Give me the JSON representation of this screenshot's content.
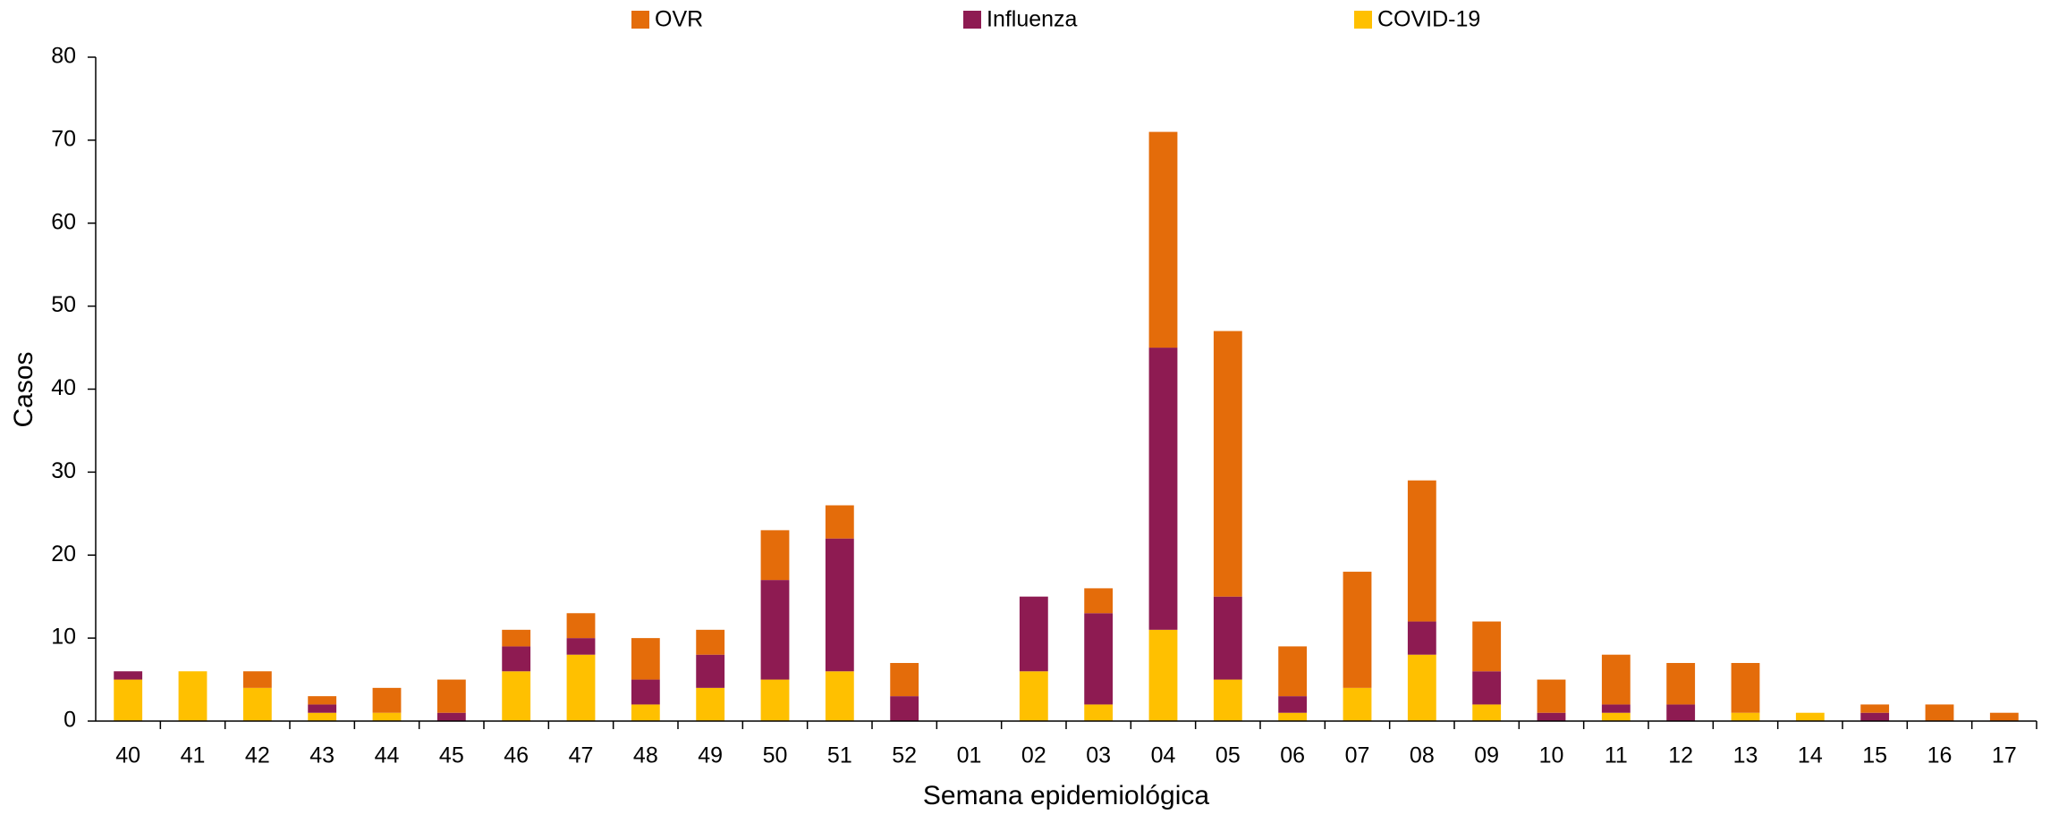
{
  "chart_data": {
    "type": "stacked_bar",
    "x_label": "Semana epidemiológica",
    "y_label": "Casos",
    "categories": [
      "40",
      "41",
      "42",
      "43",
      "44",
      "45",
      "46",
      "47",
      "48",
      "49",
      "50",
      "51",
      "52",
      "01",
      "02",
      "03",
      "04",
      "05",
      "06",
      "07",
      "08",
      "09",
      "10",
      "11",
      "12",
      "13",
      "14",
      "15",
      "16",
      "17"
    ],
    "series": [
      {
        "name": "OVR",
        "color": "#e46c0a",
        "values": [
          0,
          0,
          2,
          1,
          3,
          4,
          2,
          3,
          5,
          3,
          6,
          4,
          4,
          0,
          0,
          3,
          26,
          32,
          6,
          14,
          17,
          6,
          4,
          6,
          5,
          6,
          0,
          1,
          2,
          1
        ]
      },
      {
        "name": "Influenza",
        "color": "#8e1b52",
        "values": [
          1,
          0,
          0,
          1,
          0,
          1,
          3,
          2,
          3,
          4,
          12,
          16,
          3,
          0,
          9,
          11,
          34,
          10,
          2,
          0,
          4,
          4,
          1,
          1,
          2,
          0,
          0,
          1,
          0,
          0
        ]
      },
      {
        "name": "COVID-19",
        "color": "#ffc000",
        "values": [
          5,
          6,
          4,
          1,
          1,
          0,
          6,
          8,
          2,
          4,
          5,
          6,
          0,
          0,
          6,
          2,
          11,
          5,
          1,
          4,
          8,
          2,
          0,
          1,
          0,
          1,
          1,
          0,
          0,
          0
        ]
      }
    ],
    "ylim": [
      0,
      80
    ],
    "yticks": [
      0,
      10,
      20,
      30,
      40,
      50,
      60,
      70,
      80
    ],
    "legend": "top",
    "grid": false
  }
}
